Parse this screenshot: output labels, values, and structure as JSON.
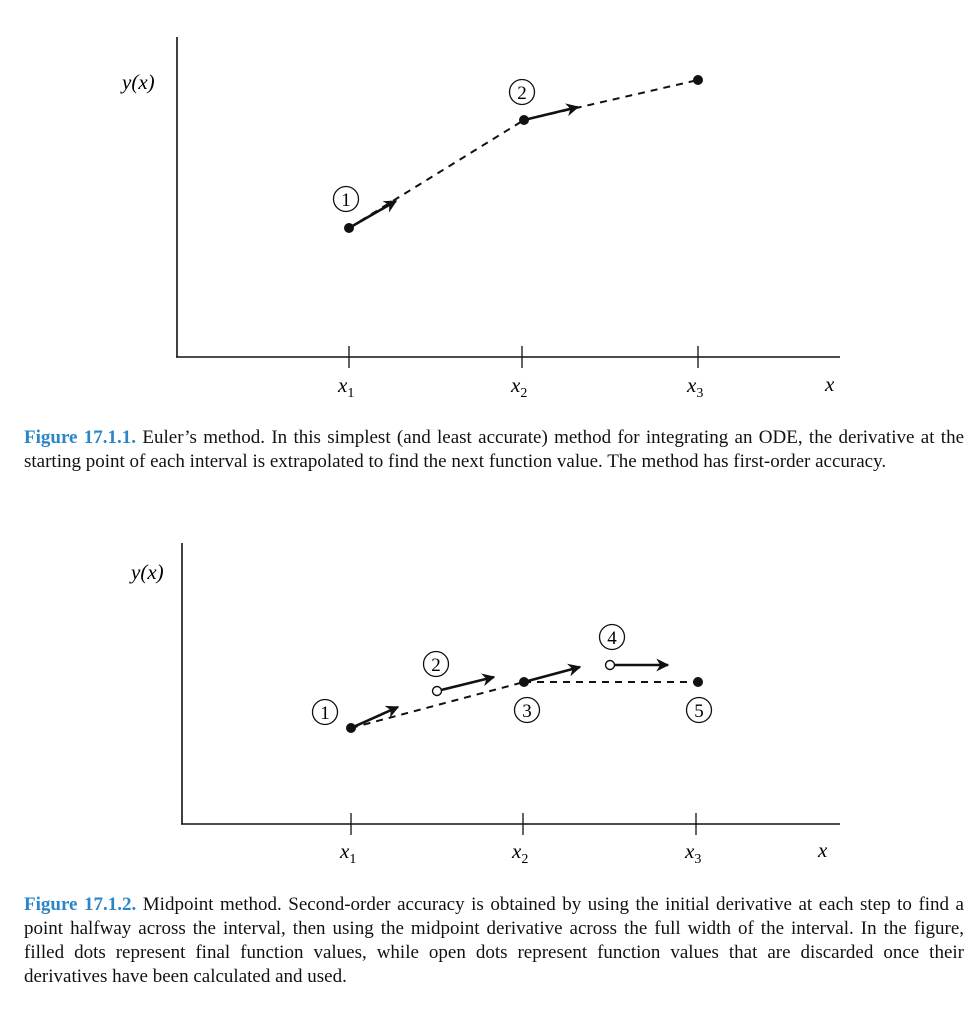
{
  "figure1": {
    "y_axis_label": "y(x)",
    "x_axis_label": "x",
    "tick_labels": [
      {
        "base": "x",
        "sub": "1"
      },
      {
        "base": "x",
        "sub": "2"
      },
      {
        "base": "x",
        "sub": "3"
      }
    ],
    "markers": [
      "1",
      "2"
    ],
    "caption_label": "Figure 17.1.1.",
    "caption_text": "Euler’s method. In this simplest (and least accurate) method for integrating an ODE, the derivative at the starting point of each interval is extrapolated to find the next function value. The method has first-order accuracy."
  },
  "figure2": {
    "y_axis_label": "y(x)",
    "x_axis_label": "x",
    "tick_labels": [
      {
        "base": "x",
        "sub": "1"
      },
      {
        "base": "x",
        "sub": "2"
      },
      {
        "base": "x",
        "sub": "3"
      }
    ],
    "markers": [
      "1",
      "2",
      "3",
      "4",
      "5"
    ],
    "caption_label": "Figure 17.1.2.",
    "caption_text": "Midpoint method. Second-order accuracy is obtained by using the initial derivative at each step to find a point halfway across the interval, then using the midpoint derivative across the full width of the interval. In the figure, filled dots represent final function values, while open dots represent function values that are discarded once their derivatives have been calculated and used."
  },
  "legend_meaning": {
    "filled_dot": "final function values",
    "open_dot": "function values that are discarded"
  }
}
